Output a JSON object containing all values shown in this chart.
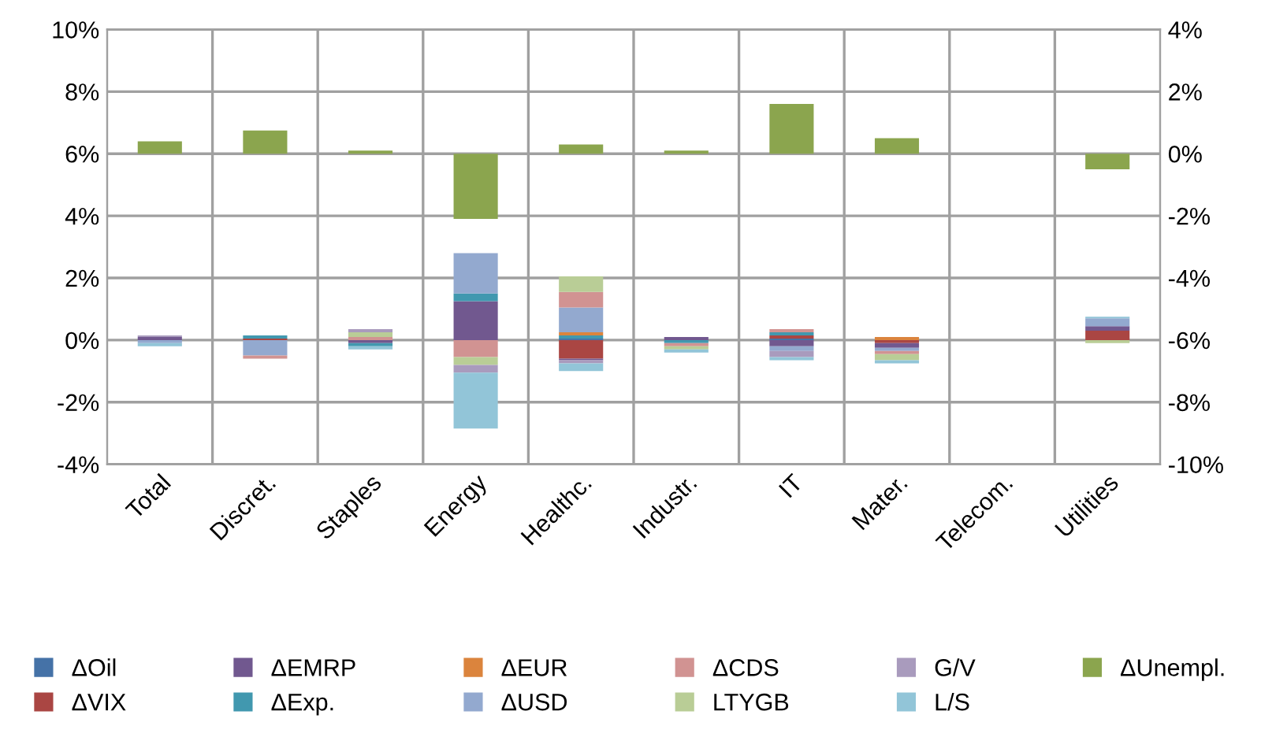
{
  "chart_data": {
    "type": "bar",
    "stacked": true,
    "categories": [
      "Total",
      "Discret.",
      "Staples",
      "Energy",
      "Healthc.",
      "Industr.",
      "IT",
      "Mater.",
      "Telecom.",
      "Utilities"
    ],
    "series": [
      {
        "name": "ΔOil",
        "color": "#4572a7",
        "values": [
          0,
          0,
          0,
          0,
          0.05,
          0,
          0.05,
          0,
          null,
          0
        ]
      },
      {
        "name": "ΔVIX",
        "color": "#aa4643",
        "values": [
          0,
          0.05,
          0,
          0,
          -0.6,
          0,
          0.1,
          -0.1,
          null,
          0.3
        ]
      },
      {
        "name": "ΔEMRP",
        "color": "#71588f",
        "values": [
          0.1,
          0,
          -0.1,
          1.25,
          -0.05,
          0.1,
          -0.2,
          -0.15,
          null,
          0.15
        ]
      },
      {
        "name": "ΔExp.",
        "color": "#4198af",
        "values": [
          0,
          0.1,
          -0.1,
          0.25,
          0.1,
          -0.1,
          0.1,
          0,
          null,
          0
        ]
      },
      {
        "name": "ΔEUR",
        "color": "#db843d",
        "values": [
          0,
          0,
          0,
          0,
          0.1,
          0,
          0,
          0.1,
          null,
          0
        ]
      },
      {
        "name": "ΔUSD",
        "color": "#93a9cf",
        "values": [
          -0.1,
          -0.5,
          0,
          1.3,
          0.8,
          0,
          -0.15,
          -0.1,
          null,
          0.25
        ]
      },
      {
        "name": "ΔCDS",
        "color": "#d19392",
        "values": [
          0,
          -0.1,
          0.1,
          -0.55,
          0.5,
          -0.1,
          0.1,
          -0.1,
          null,
          0
        ]
      },
      {
        "name": "LTYGB",
        "color": "#b9cd96",
        "values": [
          0,
          0,
          0.15,
          -0.25,
          0.5,
          -0.1,
          0,
          -0.2,
          null,
          -0.1
        ]
      },
      {
        "name": "G/V",
        "color": "#a99bbd",
        "values": [
          0.05,
          0,
          0.1,
          -0.25,
          -0.1,
          0,
          -0.2,
          0,
          null,
          0
        ]
      },
      {
        "name": "L/S",
        "color": "#92c5d8",
        "values": [
          -0.1,
          0,
          -0.1,
          -1.8,
          -0.25,
          -0.1,
          -0.1,
          -0.1,
          null,
          0.05
        ]
      },
      {
        "name": "ΔUnempl.",
        "color": "#8ba54e",
        "axis": "y2",
        "values": [
          0.4,
          0.75,
          0.1,
          -2.1,
          0.3,
          0.1,
          1.6,
          0.5,
          null,
          -0.5
        ]
      }
    ],
    "ylim": [
      -4,
      10
    ],
    "yticks": [
      {
        "value": -4,
        "label": "-4%"
      },
      {
        "value": -2,
        "label": "-2%"
      },
      {
        "value": 0,
        "label": "0%"
      },
      {
        "value": 2,
        "label": "2%"
      },
      {
        "value": 4,
        "label": "4%"
      },
      {
        "value": 6,
        "label": "6%"
      },
      {
        "value": 8,
        "label": "8%"
      },
      {
        "value": 10,
        "label": "10%"
      }
    ],
    "y2lim": [
      -10,
      4
    ],
    "y2ticks": [
      {
        "value": -10,
        "label": "-10%"
      },
      {
        "value": -8,
        "label": "-8%"
      },
      {
        "value": -6,
        "label": "-6%"
      },
      {
        "value": -4,
        "label": "-4%"
      },
      {
        "value": -2,
        "label": "-2%"
      },
      {
        "value": 0,
        "label": "0%"
      },
      {
        "value": 2,
        "label": "2%"
      },
      {
        "value": 4,
        "label": "4%"
      }
    ],
    "grid": true,
    "legend": "bottom"
  }
}
